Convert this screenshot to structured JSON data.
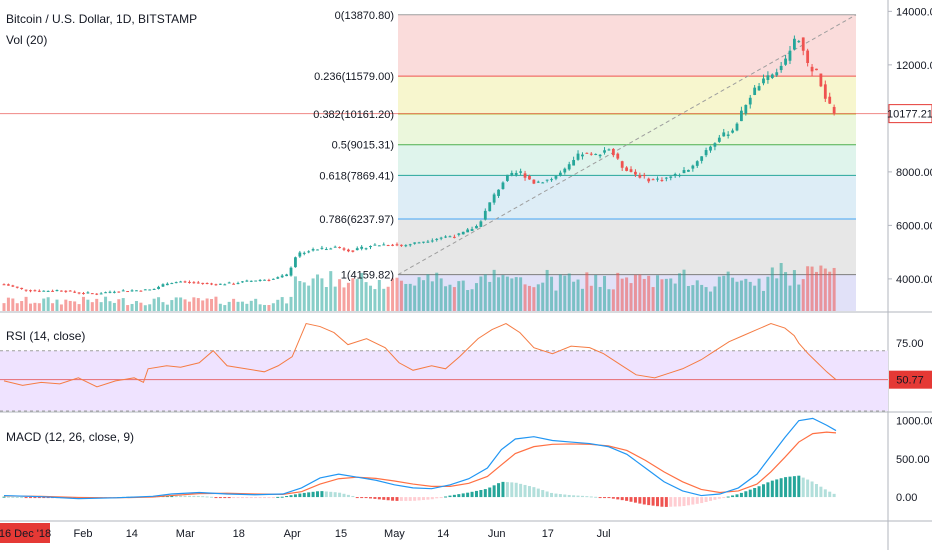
{
  "header": {
    "symbol": "Bitcoin / U.S. Dollar, 1D, BITSTAMP",
    "volume": "Vol (20)"
  },
  "panes": {
    "rsi_title": "RSI (14, close)",
    "macd_title": "MACD (12, 26, close, 9)"
  },
  "colors": {
    "up": "#26a69a",
    "down": "#ef5350",
    "rsi_line": "#f57c44",
    "macd_line": "#2196f3",
    "signal_line": "#ff7043",
    "rsi_band": "#efe3ff",
    "accent": "#e53935"
  },
  "chart_data": [
    {
      "type": "candlestick",
      "title": "Bitcoin / U.S. Dollar, 1D, BITSTAMP",
      "x_ticks": [
        "16 Dec '18",
        "Feb",
        "14",
        "Mar",
        "18",
        "Apr",
        "15",
        "May",
        "14",
        "Jun",
        "17",
        "Jul"
      ],
      "y_ticks": [
        "14000.00",
        "12000.00",
        "10000.00",
        "8000.00",
        "6000.00",
        "4000.00"
      ],
      "ylim": [
        2800,
        14200
      ],
      "last_price_label": "10177.21",
      "last_price": 10177.21,
      "fib_levels": [
        {
          "label": "0(13870.80)",
          "value": 13870.8,
          "color": "#9e9e9e",
          "fill": "#f9d6d5"
        },
        {
          "label": "0.236(11579.00)",
          "value": 11579.0,
          "color": "#ef5350",
          "fill": "#f6f4c6"
        },
        {
          "label": "0.382(10161.20)",
          "value": 10161.2,
          "color": "#b8c43a",
          "fill": "#e7f6d6"
        },
        {
          "label": "0.5(9015.31)",
          "value": 9015.31,
          "color": "#4caf50",
          "fill": "#d9f2e9"
        },
        {
          "label": "0.618(7869.41)",
          "value": 7869.41,
          "color": "#26a69a",
          "fill": "#d7eaf5"
        },
        {
          "label": "0.786(6237.97)",
          "value": 6237.97,
          "color": "#42a5f5",
          "fill": "#e3e3e3"
        },
        {
          "label": "1(4159.82)",
          "value": 4159.82,
          "color": "#7e7e7e",
          "fill": "#dcdcf7"
        }
      ],
      "price_path": [
        [
          0,
          3800
        ],
        [
          8,
          3600
        ],
        [
          16,
          3550
        ],
        [
          24,
          3580
        ],
        [
          32,
          3480
        ],
        [
          40,
          3450
        ],
        [
          48,
          3550
        ],
        [
          56,
          3570
        ],
        [
          64,
          3600
        ],
        [
          70,
          3850
        ],
        [
          76,
          3900
        ],
        [
          84,
          3850
        ],
        [
          92,
          3800
        ],
        [
          100,
          3850
        ],
        [
          108,
          3950
        ],
        [
          116,
          4000
        ],
        [
          122,
          4150
        ],
        [
          126,
          4950
        ],
        [
          134,
          5100
        ],
        [
          142,
          5200
        ],
        [
          150,
          5050
        ],
        [
          158,
          5250
        ],
        [
          166,
          5300
        ],
        [
          172,
          5250
        ],
        [
          180,
          5400
        ],
        [
          188,
          5550
        ],
        [
          196,
          5650
        ],
        [
          204,
          6000
        ],
        [
          210,
          7000
        ],
        [
          216,
          7800
        ],
        [
          222,
          8000
        ],
        [
          228,
          7600
        ],
        [
          236,
          7750
        ],
        [
          242,
          8100
        ],
        [
          248,
          8700
        ],
        [
          254,
          8600
        ],
        [
          260,
          8900
        ],
        [
          266,
          8200
        ],
        [
          272,
          7900
        ],
        [
          278,
          7700
        ],
        [
          284,
          7750
        ],
        [
          290,
          7900
        ],
        [
          296,
          8200
        ],
        [
          302,
          8800
        ],
        [
          308,
          9300
        ],
        [
          314,
          9600
        ],
        [
          320,
          10700
        ],
        [
          324,
          11200
        ],
        [
          330,
          11600
        ],
        [
          336,
          12100
        ],
        [
          340,
          12900
        ],
        [
          342,
          13000
        ],
        [
          346,
          11900
        ],
        [
          350,
          11700
        ],
        [
          354,
          10600
        ],
        [
          358,
          10177
        ]
      ],
      "volume": {
        "label": "Vol (20)"
      }
    },
    {
      "type": "line",
      "title": "RSI (14, close)",
      "y_ticks": [
        "75.00"
      ],
      "last_value_label": "50.77",
      "last_value": 50.77,
      "ylim": [
        30,
        95
      ],
      "bands": [
        30,
        70
      ],
      "series": [
        {
          "values": [
            [
              0,
              50
            ],
            [
              8,
              47
            ],
            [
              16,
              49
            ],
            [
              24,
              48
            ],
            [
              32,
              52
            ],
            [
              40,
              46
            ],
            [
              48,
              50
            ],
            [
              56,
              52
            ],
            [
              60,
              49
            ],
            [
              62,
              58
            ],
            [
              70,
              60
            ],
            [
              76,
              59
            ],
            [
              84,
              62
            ],
            [
              90,
              70
            ],
            [
              96,
              60
            ],
            [
              104,
              58
            ],
            [
              112,
              56
            ],
            [
              118,
              60
            ],
            [
              124,
              66
            ],
            [
              130,
              88
            ],
            [
              136,
              86
            ],
            [
              142,
              82
            ],
            [
              148,
              74
            ],
            [
              156,
              78
            ],
            [
              164,
              72
            ],
            [
              170,
              62
            ],
            [
              176,
              57
            ],
            [
              184,
              60
            ],
            [
              190,
              58
            ],
            [
              196,
              66
            ],
            [
              204,
              78
            ],
            [
              210,
              84
            ],
            [
              216,
              88
            ],
            [
              222,
              82
            ],
            [
              228,
              72
            ],
            [
              236,
              68
            ],
            [
              244,
              73
            ],
            [
              252,
              72
            ],
            [
              258,
              68
            ],
            [
              266,
              60
            ],
            [
              272,
              54
            ],
            [
              280,
              52
            ],
            [
              286,
              55
            ],
            [
              292,
              58
            ],
            [
              300,
              64
            ],
            [
              306,
              70
            ],
            [
              312,
              76
            ],
            [
              318,
              80
            ],
            [
              324,
              84
            ],
            [
              330,
              88
            ],
            [
              336,
              85
            ],
            [
              340,
              80
            ],
            [
              342,
              75
            ],
            [
              346,
              68
            ],
            [
              350,
              62
            ],
            [
              354,
              56
            ],
            [
              358,
              50.77
            ]
          ]
        }
      ]
    },
    {
      "type": "line",
      "title": "MACD (12, 26, close, 9)",
      "y_ticks": [
        "1000.00",
        "500.00",
        "0.00"
      ],
      "ylim": [
        -300,
        1100
      ],
      "series": [
        {
          "name": "MACD",
          "values": [
            [
              0,
              20
            ],
            [
              16,
              5
            ],
            [
              32,
              -20
            ],
            [
              48,
              -10
            ],
            [
              64,
              10
            ],
            [
              72,
              40
            ],
            [
              84,
              60
            ],
            [
              96,
              40
            ],
            [
              108,
              30
            ],
            [
              120,
              40
            ],
            [
              128,
              120
            ],
            [
              136,
              250
            ],
            [
              144,
              300
            ],
            [
              152,
              260
            ],
            [
              160,
              220
            ],
            [
              168,
              160
            ],
            [
              176,
              120
            ],
            [
              184,
              110
            ],
            [
              192,
              160
            ],
            [
              200,
              240
            ],
            [
              208,
              380
            ],
            [
              214,
              620
            ],
            [
              220,
              760
            ],
            [
              228,
              790
            ],
            [
              236,
              740
            ],
            [
              244,
              720
            ],
            [
              252,
              700
            ],
            [
              260,
              660
            ],
            [
              268,
              560
            ],
            [
              276,
              380
            ],
            [
              284,
              200
            ],
            [
              292,
              80
            ],
            [
              300,
              20
            ],
            [
              308,
              40
            ],
            [
              316,
              120
            ],
            [
              324,
              300
            ],
            [
              330,
              540
            ],
            [
              336,
              780
            ],
            [
              342,
              1000
            ],
            [
              348,
              1030
            ],
            [
              354,
              940
            ],
            [
              358,
              870
            ]
          ]
        },
        {
          "name": "Signal",
          "values": [
            [
              0,
              15
            ],
            [
              16,
              10
            ],
            [
              32,
              -5
            ],
            [
              48,
              -10
            ],
            [
              64,
              0
            ],
            [
              72,
              20
            ],
            [
              84,
              45
            ],
            [
              96,
              50
            ],
            [
              108,
              40
            ],
            [
              120,
              35
            ],
            [
              128,
              70
            ],
            [
              136,
              170
            ],
            [
              144,
              240
            ],
            [
              152,
              260
            ],
            [
              160,
              245
            ],
            [
              168,
              210
            ],
            [
              176,
              170
            ],
            [
              184,
              140
            ],
            [
              192,
              140
            ],
            [
              200,
              180
            ],
            [
              208,
              270
            ],
            [
              214,
              420
            ],
            [
              220,
              570
            ],
            [
              228,
              660
            ],
            [
              236,
              690
            ],
            [
              244,
              695
            ],
            [
              252,
              690
            ],
            [
              260,
              670
            ],
            [
              268,
              610
            ],
            [
              276,
              480
            ],
            [
              284,
              330
            ],
            [
              292,
              200
            ],
            [
              300,
              100
            ],
            [
              308,
              60
            ],
            [
              316,
              80
            ],
            [
              324,
              170
            ],
            [
              330,
              330
            ],
            [
              336,
              520
            ],
            [
              342,
              720
            ],
            [
              348,
              830
            ],
            [
              354,
              850
            ],
            [
              358,
              840
            ]
          ]
        }
      ]
    }
  ]
}
